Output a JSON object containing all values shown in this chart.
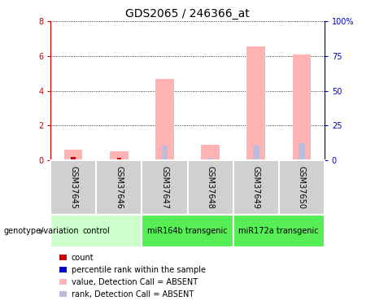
{
  "title": "GDS2065 / 246366_at",
  "samples": [
    "GSM37645",
    "GSM37646",
    "GSM37647",
    "GSM37648",
    "GSM37649",
    "GSM37650"
  ],
  "pink_bars": [
    0.62,
    0.5,
    4.7,
    0.9,
    6.55,
    6.1
  ],
  "red_bars": [
    0.2,
    0.15,
    0.05,
    0.05,
    0.05,
    0.05
  ],
  "blue_bars": [
    0.18,
    0.0,
    0.85,
    0.15,
    0.85,
    1.0
  ],
  "ylim_left": [
    0,
    8
  ],
  "ylim_right": [
    0,
    100
  ],
  "yticks_left": [
    0,
    2,
    4,
    6,
    8
  ],
  "yticks_right": [
    0,
    25,
    50,
    75,
    100
  ],
  "ytick_labels_left": [
    "0",
    "2",
    "4",
    "6",
    "8"
  ],
  "ytick_labels_right": [
    "0",
    "25",
    "50",
    "75",
    "100%"
  ],
  "left_axis_color": "#CC0000",
  "right_axis_color": "#0000CC",
  "pink_color": "#FFB3B3",
  "red_color": "#CC0000",
  "blue_color": "#7777BB",
  "rank_color": "#BBBBDD",
  "group_colors": [
    "#CCFFCC",
    "#55EE55",
    "#55EE55"
  ],
  "group_labels": [
    "control",
    "miR164b transgenic",
    "miR172a transgenic"
  ],
  "group_ranges": [
    [
      0,
      2
    ],
    [
      2,
      4
    ],
    [
      4,
      6
    ]
  ],
  "sample_box_color": "#D0D0D0",
  "legend_items": [
    {
      "color": "#CC0000",
      "label": "count"
    },
    {
      "color": "#0000CC",
      "label": "percentile rank within the sample"
    },
    {
      "color": "#FFB3B3",
      "label": "value, Detection Call = ABSENT"
    },
    {
      "color": "#BBBBDD",
      "label": "rank, Detection Call = ABSENT"
    }
  ],
  "genotype_label": "genotype/variation",
  "title_fontsize": 10,
  "tick_fontsize": 7,
  "label_fontsize": 7.5
}
